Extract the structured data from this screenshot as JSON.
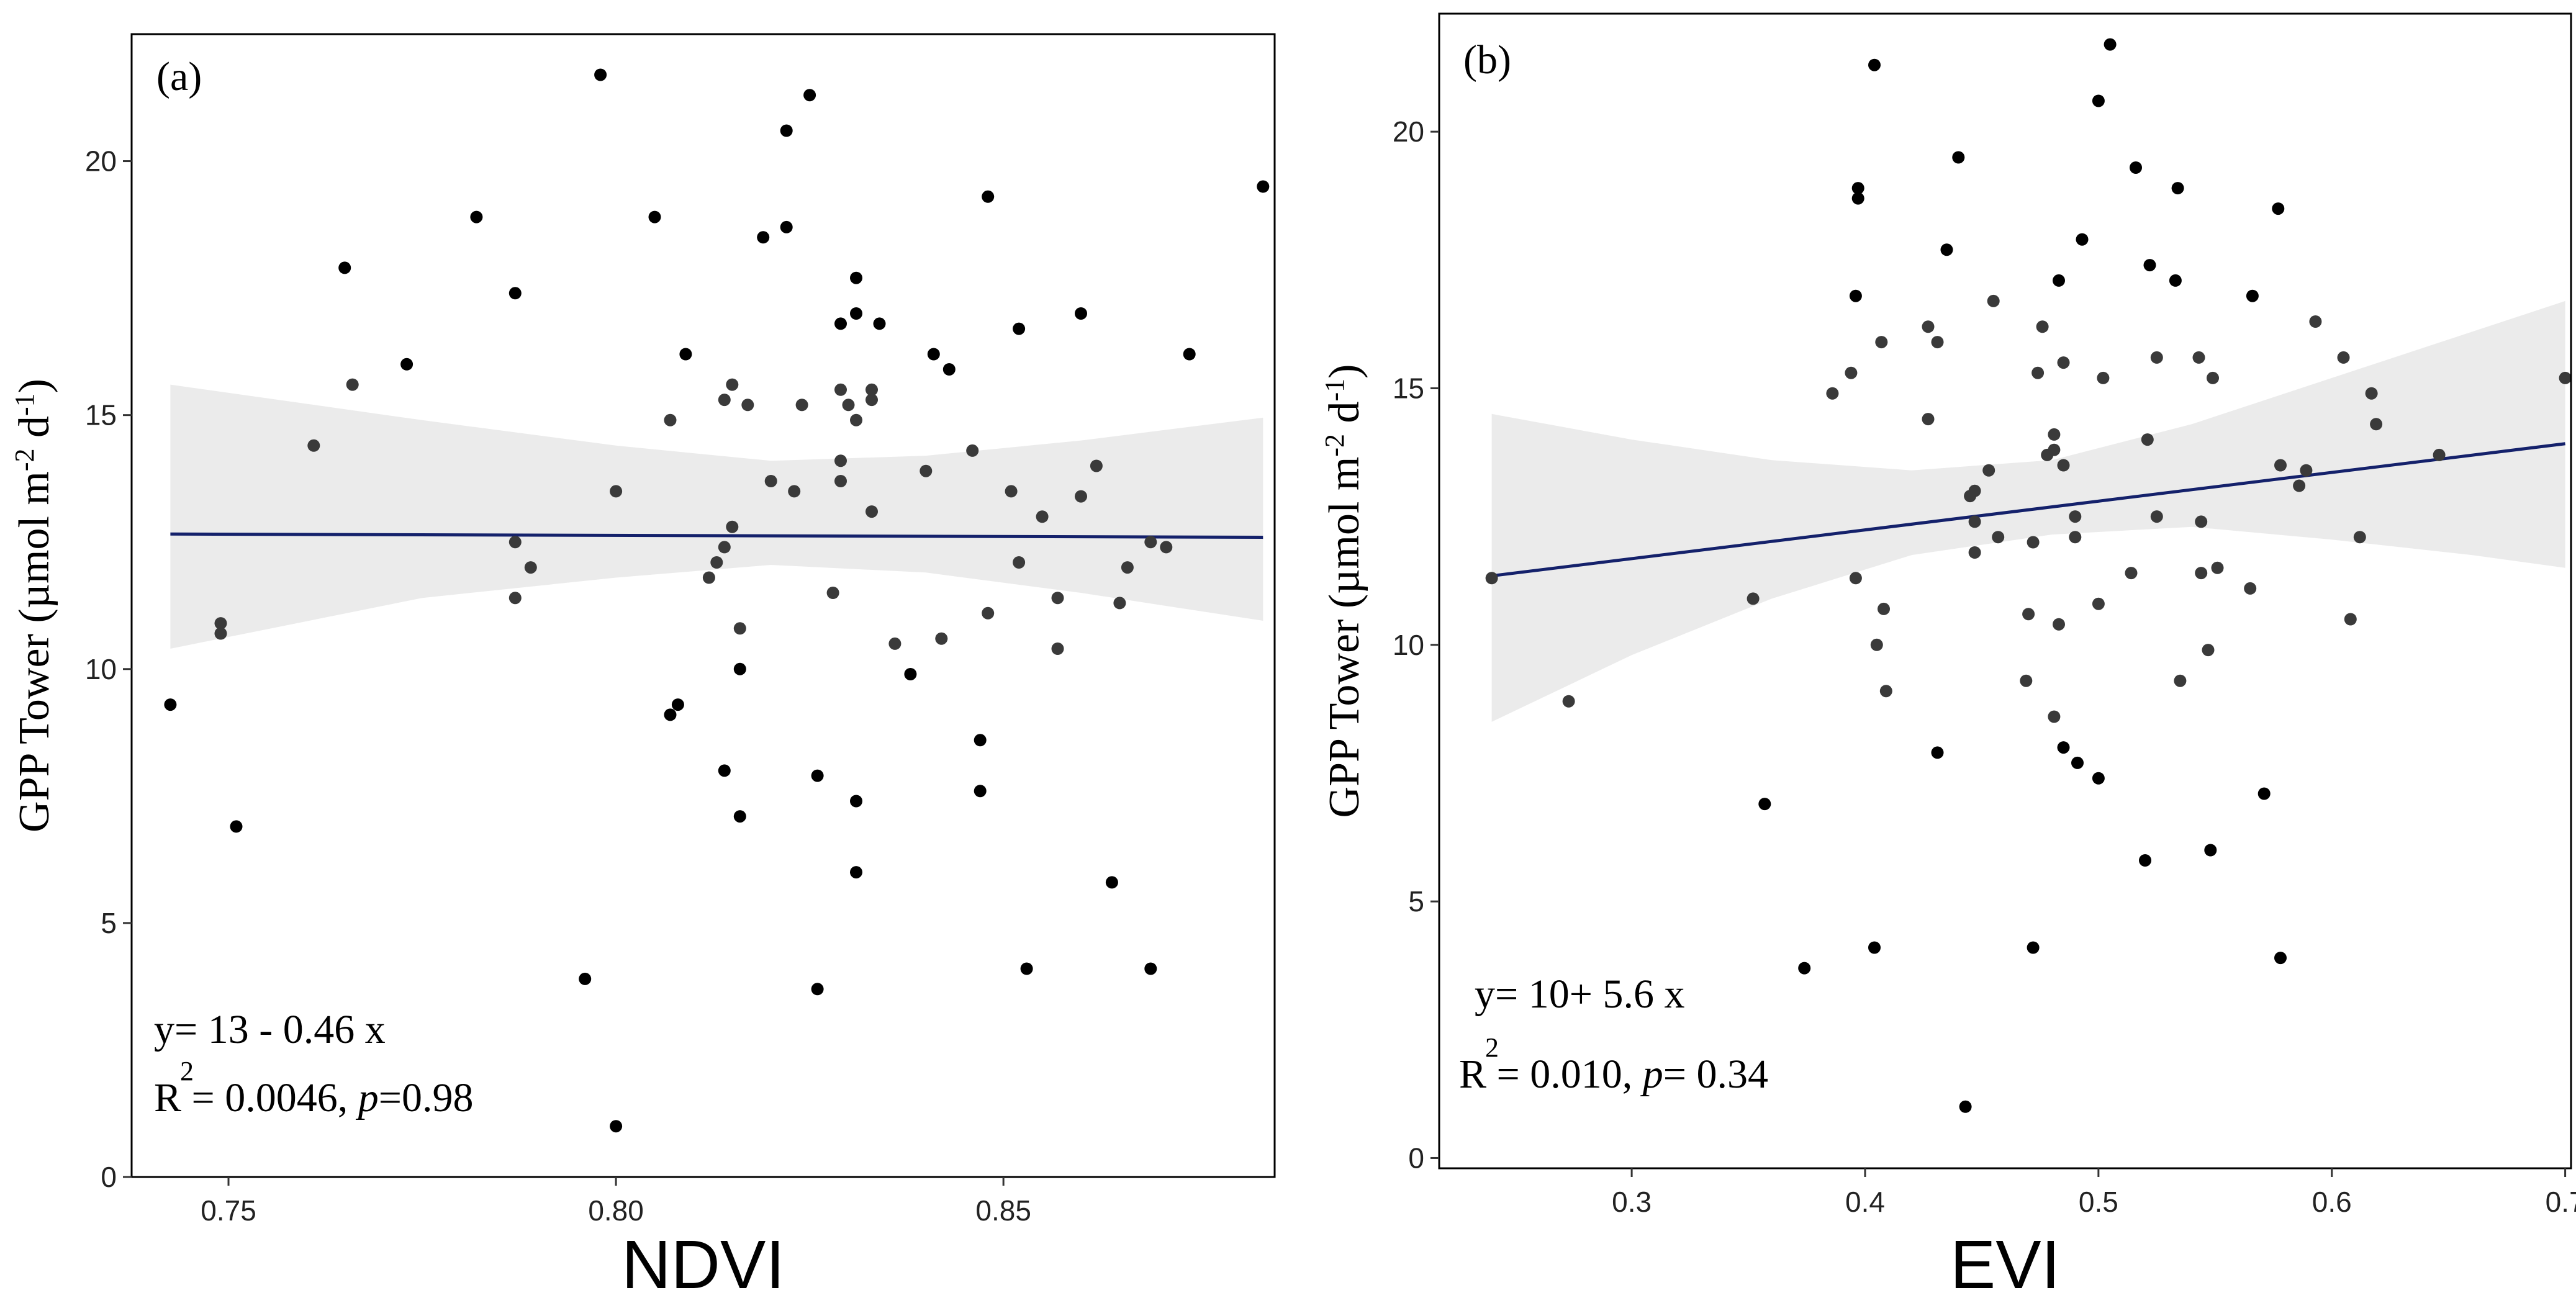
{
  "chart_data": [
    {
      "type": "scatter",
      "panel_label": "(a)",
      "xlabel": "NDVI",
      "ylabel": {
        "main": "GPP Tower (µmol m",
        "sup1": "-2",
        "mid": " d",
        "sup2": "-1",
        "end": ")"
      },
      "xlim": [
        0.7375,
        0.885
      ],
      "ylim": [
        0,
        22.5
      ],
      "xticks": [
        0.75,
        0.8,
        0.85
      ],
      "xtick_labels": [
        "0.75",
        "0.80",
        "0.85"
      ],
      "yticks": [
        0,
        5,
        10,
        15,
        20
      ],
      "ytick_labels": [
        "0",
        "5",
        "10",
        "15",
        "20"
      ],
      "fit": {
        "intercept": 13.0,
        "slope": -0.46,
        "x_range": [
          0.7425,
          0.8835
        ]
      },
      "band": {
        "x": [
          0.7425,
          0.775,
          0.8,
          0.82,
          0.84,
          0.86,
          0.8835
        ],
        "upper": [
          15.6,
          14.9,
          14.4,
          14.1,
          14.2,
          14.5,
          14.95
        ],
        "lower": [
          10.4,
          11.4,
          11.8,
          12.05,
          11.9,
          11.5,
          10.95
        ]
      },
      "equation": "y= 13 - 0.46 x",
      "r2_text": {
        "r": "R",
        "sup": "2",
        "value": " = 0.0046, ",
        "p": "p",
        "pval": "=0.98"
      },
      "points": [
        {
          "x": 0.7425,
          "y": 9.3
        },
        {
          "x": 0.749,
          "y": 10.9
        },
        {
          "x": 0.749,
          "y": 10.7
        },
        {
          "x": 0.751,
          "y": 6.9
        },
        {
          "x": 0.761,
          "y": 14.4
        },
        {
          "x": 0.765,
          "y": 17.9
        },
        {
          "x": 0.766,
          "y": 15.6
        },
        {
          "x": 0.773,
          "y": 16.0
        },
        {
          "x": 0.782,
          "y": 18.9
        },
        {
          "x": 0.787,
          "y": 17.4
        },
        {
          "x": 0.787,
          "y": 12.5
        },
        {
          "x": 0.787,
          "y": 11.4
        },
        {
          "x": 0.789,
          "y": 12.0
        },
        {
          "x": 0.796,
          "y": 3.9
        },
        {
          "x": 0.798,
          "y": 21.7
        },
        {
          "x": 0.8,
          "y": 13.5
        },
        {
          "x": 0.8,
          "y": 1.0
        },
        {
          "x": 0.805,
          "y": 18.9
        },
        {
          "x": 0.807,
          "y": 14.9
        },
        {
          "x": 0.807,
          "y": 9.1
        },
        {
          "x": 0.808,
          "y": 9.3
        },
        {
          "x": 0.809,
          "y": 16.2
        },
        {
          "x": 0.812,
          "y": 11.8
        },
        {
          "x": 0.813,
          "y": 12.1
        },
        {
          "x": 0.814,
          "y": 12.4
        },
        {
          "x": 0.814,
          "y": 15.3
        },
        {
          "x": 0.815,
          "y": 15.6
        },
        {
          "x": 0.815,
          "y": 12.8
        },
        {
          "x": 0.814,
          "y": 8.0
        },
        {
          "x": 0.816,
          "y": 10.8
        },
        {
          "x": 0.816,
          "y": 10.0
        },
        {
          "x": 0.816,
          "y": 7.1
        },
        {
          "x": 0.817,
          "y": 15.2
        },
        {
          "x": 0.819,
          "y": 18.5
        },
        {
          "x": 0.82,
          "y": 13.7
        },
        {
          "x": 0.822,
          "y": 18.7
        },
        {
          "x": 0.822,
          "y": 20.6
        },
        {
          "x": 0.823,
          "y": 13.5
        },
        {
          "x": 0.824,
          "y": 15.2
        },
        {
          "x": 0.825,
          "y": 21.3
        },
        {
          "x": 0.826,
          "y": 7.9
        },
        {
          "x": 0.826,
          "y": 3.7
        },
        {
          "x": 0.828,
          "y": 11.5
        },
        {
          "x": 0.829,
          "y": 16.8
        },
        {
          "x": 0.829,
          "y": 15.5
        },
        {
          "x": 0.829,
          "y": 14.1
        },
        {
          "x": 0.829,
          "y": 13.7
        },
        {
          "x": 0.83,
          "y": 15.2
        },
        {
          "x": 0.831,
          "y": 17.7
        },
        {
          "x": 0.831,
          "y": 17.0
        },
        {
          "x": 0.831,
          "y": 14.9
        },
        {
          "x": 0.831,
          "y": 7.4
        },
        {
          "x": 0.831,
          "y": 6.0
        },
        {
          "x": 0.833,
          "y": 15.5
        },
        {
          "x": 0.833,
          "y": 15.3
        },
        {
          "x": 0.833,
          "y": 13.1
        },
        {
          "x": 0.834,
          "y": 16.8
        },
        {
          "x": 0.836,
          "y": 10.5
        },
        {
          "x": 0.838,
          "y": 9.9
        },
        {
          "x": 0.84,
          "y": 13.9
        },
        {
          "x": 0.841,
          "y": 16.2
        },
        {
          "x": 0.842,
          "y": 10.6
        },
        {
          "x": 0.843,
          "y": 15.9
        },
        {
          "x": 0.846,
          "y": 14.3
        },
        {
          "x": 0.847,
          "y": 8.6
        },
        {
          "x": 0.847,
          "y": 7.6
        },
        {
          "x": 0.848,
          "y": 19.3
        },
        {
          "x": 0.848,
          "y": 11.1
        },
        {
          "x": 0.851,
          "y": 13.5
        },
        {
          "x": 0.852,
          "y": 16.7
        },
        {
          "x": 0.852,
          "y": 12.1
        },
        {
          "x": 0.853,
          "y": 4.1
        },
        {
          "x": 0.855,
          "y": 13.0
        },
        {
          "x": 0.857,
          "y": 11.4
        },
        {
          "x": 0.857,
          "y": 10.4
        },
        {
          "x": 0.86,
          "y": 17.0
        },
        {
          "x": 0.86,
          "y": 13.4
        },
        {
          "x": 0.862,
          "y": 14.0
        },
        {
          "x": 0.864,
          "y": 5.8
        },
        {
          "x": 0.865,
          "y": 11.3
        },
        {
          "x": 0.866,
          "y": 12.0
        },
        {
          "x": 0.869,
          "y": 12.5
        },
        {
          "x": 0.869,
          "y": 4.1
        },
        {
          "x": 0.871,
          "y": 12.4
        },
        {
          "x": 0.874,
          "y": 16.2
        },
        {
          "x": 0.8835,
          "y": 19.5
        }
      ]
    },
    {
      "type": "scatter",
      "panel_label": "(b)",
      "xlabel": "EVI",
      "ylabel": {
        "main": "GPP Tower (µmol m",
        "sup1": "-2",
        "mid": " d",
        "sup2": "-1",
        "end": ")"
      },
      "xlim": [
        0.2175,
        0.7025
      ],
      "ylim": [
        -0.2,
        22.3
      ],
      "xticks": [
        0.3,
        0.4,
        0.5,
        0.6,
        0.7
      ],
      "xtick_labels": [
        "0.3",
        "0.4",
        "0.5",
        "0.6",
        "0.7"
      ],
      "yticks": [
        0,
        5,
        10,
        15,
        20
      ],
      "ytick_labels": [
        "0",
        "5",
        "10",
        "15",
        "20"
      ],
      "fit": {
        "intercept": 10.0,
        "slope": 5.6,
        "x_range": [
          0.24,
          0.7
        ]
      },
      "band": {
        "x": [
          0.24,
          0.3,
          0.36,
          0.42,
          0.48,
          0.54,
          0.6,
          0.66,
          0.7
        ],
        "upper": [
          14.5,
          14.0,
          13.6,
          13.4,
          13.6,
          14.3,
          15.2,
          16.1,
          16.7
        ],
        "lower": [
          8.5,
          9.8,
          10.9,
          11.75,
          12.15,
          12.3,
          12.05,
          11.75,
          11.5
        ]
      },
      "equation": "y= 10+ 5.6 x",
      "r2_text": {
        "r": "R",
        "sup": "2",
        "value": " = 0.010, ",
        "p": "p",
        "pval": "= 0.34"
      },
      "points": [
        {
          "x": 0.24,
          "y": 11.3
        },
        {
          "x": 0.273,
          "y": 8.9
        },
        {
          "x": 0.352,
          "y": 10.9
        },
        {
          "x": 0.357,
          "y": 6.9
        },
        {
          "x": 0.374,
          "y": 3.7
        },
        {
          "x": 0.386,
          "y": 14.9
        },
        {
          "x": 0.394,
          "y": 15.3
        },
        {
          "x": 0.396,
          "y": 16.8
        },
        {
          "x": 0.397,
          "y": 18.9
        },
        {
          "x": 0.397,
          "y": 18.7
        },
        {
          "x": 0.396,
          "y": 11.3
        },
        {
          "x": 0.404,
          "y": 21.3
        },
        {
          "x": 0.404,
          "y": 4.1
        },
        {
          "x": 0.405,
          "y": 10.0
        },
        {
          "x": 0.407,
          "y": 15.9
        },
        {
          "x": 0.408,
          "y": 10.7
        },
        {
          "x": 0.409,
          "y": 9.1
        },
        {
          "x": 0.427,
          "y": 14.4
        },
        {
          "x": 0.427,
          "y": 16.2
        },
        {
          "x": 0.431,
          "y": 15.9
        },
        {
          "x": 0.431,
          "y": 7.9
        },
        {
          "x": 0.435,
          "y": 17.7
        },
        {
          "x": 0.44,
          "y": 19.5
        },
        {
          "x": 0.443,
          "y": 1.0
        },
        {
          "x": 0.445,
          "y": 12.9
        },
        {
          "x": 0.447,
          "y": 13.0
        },
        {
          "x": 0.447,
          "y": 12.4
        },
        {
          "x": 0.447,
          "y": 11.8
        },
        {
          "x": 0.453,
          "y": 13.4
        },
        {
          "x": 0.455,
          "y": 16.7
        },
        {
          "x": 0.457,
          "y": 12.1
        },
        {
          "x": 0.469,
          "y": 9.3
        },
        {
          "x": 0.47,
          "y": 10.6
        },
        {
          "x": 0.472,
          "y": 12.0
        },
        {
          "x": 0.472,
          "y": 4.1
        },
        {
          "x": 0.474,
          "y": 15.3
        },
        {
          "x": 0.476,
          "y": 16.2
        },
        {
          "x": 0.478,
          "y": 13.7
        },
        {
          "x": 0.481,
          "y": 14.1
        },
        {
          "x": 0.481,
          "y": 13.8
        },
        {
          "x": 0.481,
          "y": 8.6
        },
        {
          "x": 0.483,
          "y": 17.1
        },
        {
          "x": 0.483,
          "y": 10.4
        },
        {
          "x": 0.485,
          "y": 15.5
        },
        {
          "x": 0.485,
          "y": 13.5
        },
        {
          "x": 0.485,
          "y": 8.0
        },
        {
          "x": 0.49,
          "y": 12.5
        },
        {
          "x": 0.49,
          "y": 12.1
        },
        {
          "x": 0.491,
          "y": 7.7
        },
        {
          "x": 0.493,
          "y": 17.9
        },
        {
          "x": 0.5,
          "y": 20.6
        },
        {
          "x": 0.5,
          "y": 10.8
        },
        {
          "x": 0.5,
          "y": 7.4
        },
        {
          "x": 0.502,
          "y": 15.2
        },
        {
          "x": 0.505,
          "y": 21.7
        },
        {
          "x": 0.514,
          "y": 11.4
        },
        {
          "x": 0.516,
          "y": 19.3
        },
        {
          "x": 0.52,
          "y": 5.8
        },
        {
          "x": 0.521,
          "y": 14.0
        },
        {
          "x": 0.522,
          "y": 17.4
        },
        {
          "x": 0.525,
          "y": 15.6
        },
        {
          "x": 0.525,
          "y": 12.5
        },
        {
          "x": 0.533,
          "y": 17.1
        },
        {
          "x": 0.534,
          "y": 18.9
        },
        {
          "x": 0.535,
          "y": 9.3
        },
        {
          "x": 0.543,
          "y": 15.6
        },
        {
          "x": 0.544,
          "y": 12.4
        },
        {
          "x": 0.544,
          "y": 11.4
        },
        {
          "x": 0.547,
          "y": 9.9
        },
        {
          "x": 0.548,
          "y": 6.0
        },
        {
          "x": 0.549,
          "y": 15.2
        },
        {
          "x": 0.551,
          "y": 11.5
        },
        {
          "x": 0.565,
          "y": 11.1
        },
        {
          "x": 0.566,
          "y": 16.8
        },
        {
          "x": 0.571,
          "y": 7.1
        },
        {
          "x": 0.577,
          "y": 18.5
        },
        {
          "x": 0.578,
          "y": 13.5
        },
        {
          "x": 0.578,
          "y": 3.9
        },
        {
          "x": 0.586,
          "y": 13.1
        },
        {
          "x": 0.589,
          "y": 13.4
        },
        {
          "x": 0.593,
          "y": 16.3
        },
        {
          "x": 0.605,
          "y": 15.6
        },
        {
          "x": 0.608,
          "y": 10.5
        },
        {
          "x": 0.612,
          "y": 12.1
        },
        {
          "x": 0.617,
          "y": 14.9
        },
        {
          "x": 0.619,
          "y": 14.3
        },
        {
          "x": 0.646,
          "y": 13.7
        },
        {
          "x": 0.7,
          "y": 15.2
        }
      ]
    }
  ]
}
